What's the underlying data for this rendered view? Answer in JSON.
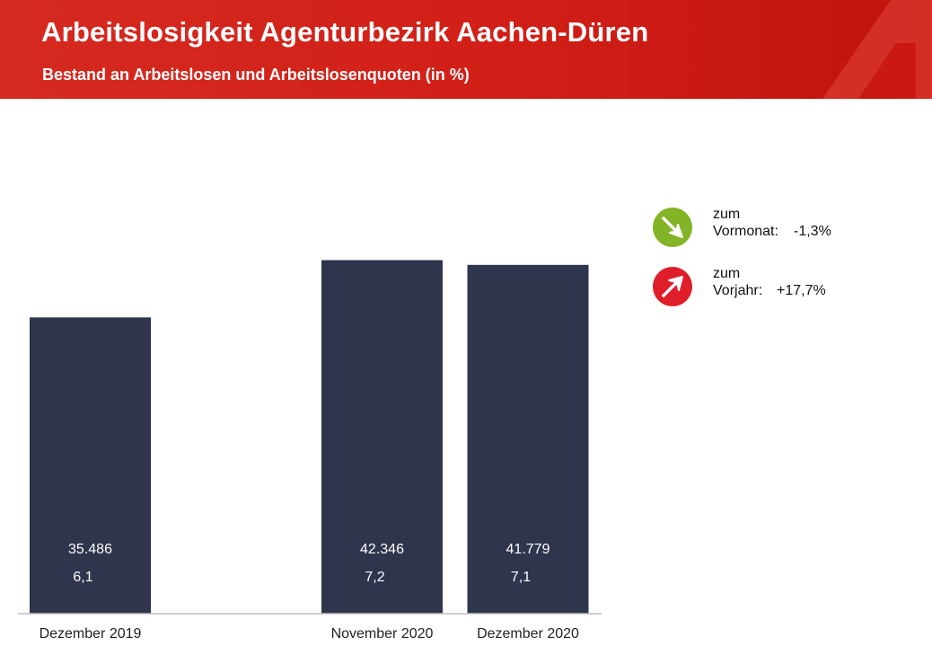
{
  "header": {
    "title": "Arbeitslosigkeit  Agenturbezirk Aachen-Düren",
    "subtitle": "Bestand an Arbeitslosen und Arbeitslosenquoten (in %)"
  },
  "colors": {
    "header_red": "#d11f17",
    "bar": "#2e354c",
    "arrow_down_bg": "#83b326",
    "arrow_up_bg": "#e01d2a"
  },
  "chart_data": {
    "type": "bar",
    "categories": [
      "Dezember 2019",
      "",
      "November 2020",
      "Dezember 2020"
    ],
    "values": [
      35486,
      null,
      42346,
      41779
    ],
    "value_labels": [
      "35.486",
      "",
      "42.346",
      "41.779"
    ],
    "quote_labels": [
      "6,1",
      "",
      "7,2",
      "7,1"
    ],
    "quotes": [
      6.1,
      null,
      7.2,
      7.1
    ],
    "ylim": [
      0,
      48000
    ],
    "grid": false,
    "legend_position": "right"
  },
  "changes": {
    "vormonat": {
      "line1": "zum",
      "line2": "Vormonat:",
      "value": "-1,3%",
      "icon": "arrow-down-right-icon"
    },
    "vorjahr": {
      "line1": "zum",
      "line2": "Vorjahr:",
      "value": "+17,7%",
      "icon": "arrow-up-right-icon"
    }
  }
}
